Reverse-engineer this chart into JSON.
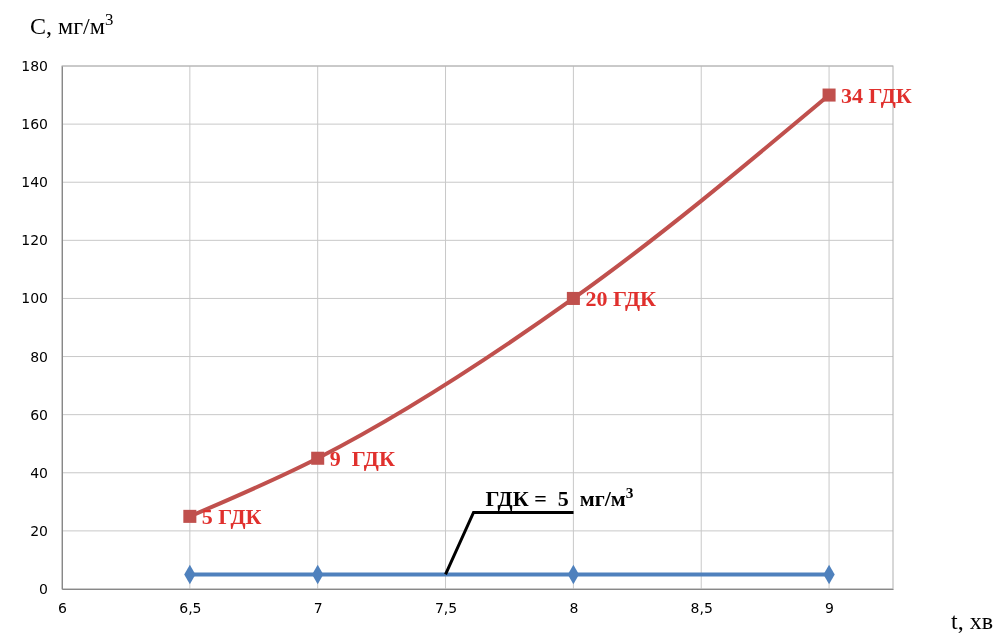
{
  "chart_data": {
    "type": "line",
    "xlabel": "t, хв",
    "ylabel": "C, мг/м$^{3}$",
    "xlim": [
      6,
      9.25
    ],
    "xticks": [
      6,
      {
        "value": 6.5,
        "label": "6,5"
      },
      7,
      {
        "value": 7.5,
        "label": "7,5"
      },
      8,
      {
        "value": 8.5,
        "label": "8,5"
      },
      9
    ],
    "ylim": [
      0,
      180
    ],
    "yticks": [
      0,
      20,
      40,
      60,
      80,
      100,
      120,
      140,
      160,
      180
    ],
    "grid": true,
    "series": [
      {
        "color": "#c0504d",
        "marker": "square",
        "x": [
          6.5,
          7,
          8,
          9
        ],
        "values": [
          25,
          45,
          100,
          170
        ]
      },
      {
        "color": "#4f81bd",
        "marker": "diamond",
        "x": [
          6.5,
          7,
          8,
          9
        ],
        "values": [
          5,
          5,
          5,
          5
        ]
      }
    ],
    "annotations": [
      {
        "text": "5 ГДК",
        "x": 6.5,
        "y": 25
      },
      {
        "text": "9  ГДК",
        "x": 7,
        "y": 45
      },
      {
        "text": "20 ГДК",
        "x": 8,
        "y": 100
      },
      {
        "text": "34 ГДК",
        "x": 9,
        "y": 170
      },
      {
        "text": "ГДК =  5  мг/м$^{3}$",
        "x": 7.5,
        "y": 5
      }
    ]
  }
}
